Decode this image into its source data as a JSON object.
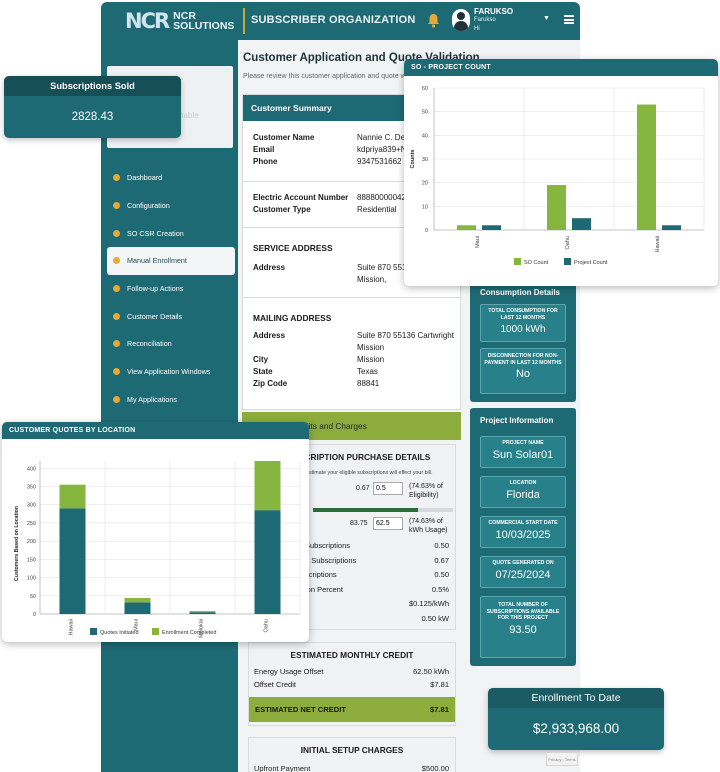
{
  "app": {
    "logo_mark": "NCR",
    "logo_line1": "NCR",
    "logo_line2": "SOLUTIONS",
    "org_title": "SUBSCRIBER ORGANIZATION",
    "user_name": "FARUKSO",
    "user_role": "Farukso",
    "user_greeting": "Hi"
  },
  "sidebar": {
    "photo_placeholder": "nable",
    "items": [
      {
        "label": "Dashboard",
        "active": false
      },
      {
        "label": "Configuration",
        "active": false
      },
      {
        "label": "SO CSR Creation",
        "active": false
      },
      {
        "label": "Manual Enrollment",
        "active": true
      },
      {
        "label": "Follow-up Actions",
        "active": false
      },
      {
        "label": "Customer Details",
        "active": false
      },
      {
        "label": "Reconciliation",
        "active": false
      },
      {
        "label": "View Application Windows",
        "active": false
      },
      {
        "label": "My Applications",
        "active": false
      }
    ]
  },
  "main": {
    "title": "Customer Application and Quote Validation",
    "subtitle": "Please review this customer application and quote w",
    "customer_summary": {
      "header": "Customer Summary",
      "customer_name_label": "Customer Name",
      "customer_name": "Nannie C. Dea",
      "email_label": "Email",
      "email": "kdpriya839+N",
      "phone_label": "Phone",
      "phone": "9347531662",
      "account_label": "Electric Account Number",
      "account": "88880000042",
      "type_label": "Customer Type",
      "type": "Residential",
      "service_title": "SERVICE ADDRESS",
      "service_address_label": "Address",
      "service_address_1": "Suite 870 5513",
      "service_address_2": "Mission,",
      "mailing_title": "MAILING ADDRESS",
      "mailing_address_label": "Address",
      "mailing_address_1": "Suite 870 55136 Cartwright",
      "mailing_address_2": "Mission",
      "city_label": "City",
      "city": "Mission",
      "state_label": "State",
      "state": "Texas",
      "zip_label": "Zip Code",
      "zip": "88841"
    },
    "credits_bar": "dits and Charges",
    "purchase": {
      "title": "SCRIPTION PURCHASE DETAILS",
      "note": "stimate your eligible subscriptions will effect your bill.",
      "value1": "0.67",
      "input1": "0.5",
      "pct1": "(74.63% of Eligibility)",
      "value2": "83.75",
      "input2": "62.5",
      "pct2": "(74.63% of kWh Usage)",
      "progress_fraction": 0.75,
      "rows": [
        {
          "label": "Subscriptions",
          "value": "0.50"
        },
        {
          "label": "n Subscriptions",
          "value": "0.67"
        },
        {
          "label": "scriptions",
          "value": "0.50"
        },
        {
          "label": "ion Percent",
          "value": "0.5%"
        },
        {
          "label": "",
          "value": "$0.125/kWh"
        },
        {
          "label": "e",
          "value": "0.50 kW"
        }
      ]
    },
    "monthly_credit": {
      "title": "ESTIMATED MONTHLY CREDIT",
      "offset_label": "Energy Usage Offset",
      "offset_value": "62.50 kWh",
      "credit_label": "Offset Credit",
      "credit_value": "$7.81",
      "net_label": "ESTIMATED NET CREDIT",
      "net_value": "$7.81"
    },
    "setup": {
      "title": "INITIAL SETUP CHARGES",
      "upfront_label": "Upfront Payment",
      "upfront_value": "$500.00"
    }
  },
  "consumption": {
    "header": "Consumption Details",
    "total_label": "TOTAL CONSUMPTION FOR LAST 12 MONTHS",
    "total_value": "1000 kWh",
    "disc_label": "DISCONNECTION FOR NON-PAYMENT IN LAST 12 MONTHS",
    "disc_value": "No"
  },
  "project": {
    "header": "Project Information",
    "name_label": "PROJECT NAME",
    "name_value": "Sun Solar01",
    "location_label": "LOCATION",
    "location_value": "Florida",
    "start_label": "COMMERCIAL START DATE",
    "start_value": "10/03/2025",
    "quote_label": "QUOTE GENERATED ON",
    "quote_value": "07/25/2024",
    "subs_label": "TOTAL NUMBER OF SUBSCRIPTIONS AVAILABLE FOR THIS PROJECT",
    "subs_value": "93.50"
  },
  "widgets": {
    "subscriptions_sold_label": "Subscriptions Sold",
    "subscriptions_sold_value": "2828.43",
    "enrollment_label": "Enrollment To Date",
    "enrollment_value": "$2,933,968.00",
    "recaptcha": "Privacy - Terms"
  },
  "chart_data": [
    {
      "type": "bar",
      "title": "SO - PROJECT COUNT",
      "categories": [
        "Maui",
        "Oahu",
        "Hawaii"
      ],
      "series": [
        {
          "name": "SO Count",
          "values": [
            2,
            19,
            53
          ]
        },
        {
          "name": "Project Count",
          "values": [
            2,
            5,
            2
          ]
        }
      ],
      "ylabel": "Counts",
      "ylim": [
        0,
        60
      ],
      "yticks": [
        0,
        10,
        20,
        30,
        40,
        50,
        60
      ],
      "colors": [
        "#86b63f",
        "#1e6a74"
      ],
      "legend": "bottom"
    },
    {
      "type": "bar",
      "stacked": true,
      "title": "CUSTOMER QUOTES BY LOCATION",
      "categories": [
        "Hawaii",
        "Maui",
        "Molokai",
        "Oahu"
      ],
      "series": [
        {
          "name": "Quotes Initiated",
          "values": [
            290,
            32,
            5,
            285
          ]
        },
        {
          "name": "Enrollment Completed",
          "values": [
            65,
            12,
            3,
            135
          ]
        }
      ],
      "ylabel": "Customers Based on Location",
      "ylim": [
        0,
        420
      ],
      "yticks": [
        0,
        50,
        100,
        150,
        200,
        250,
        300,
        350,
        400
      ],
      "colors": [
        "#1e6a74",
        "#86b63f"
      ],
      "legend": "bottom"
    }
  ]
}
